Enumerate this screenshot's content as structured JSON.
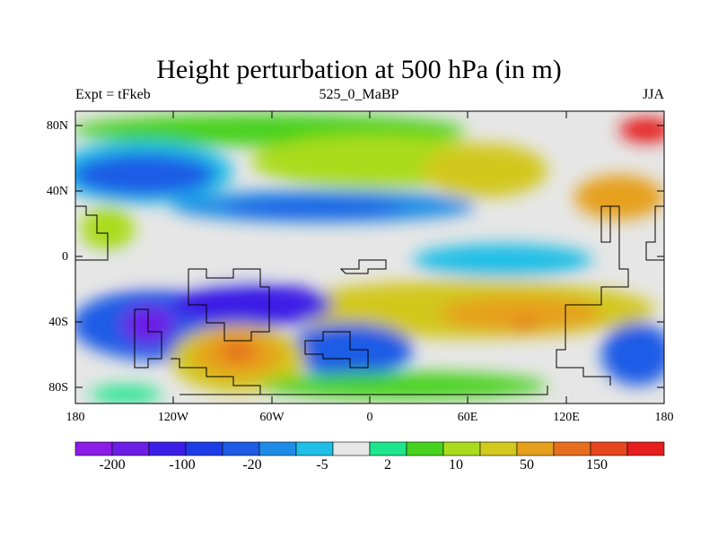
{
  "title": "Height perturbation at 500 hPa (in m)",
  "subtitle_left": "Expt = tFkeb",
  "subtitle_center": "525_0_MaBP",
  "subtitle_right": "JJA",
  "lat_ticks": [
    "80N",
    "40N",
    "0",
    "40S",
    "80S"
  ],
  "lon_ticks": [
    "180",
    "120W",
    "60W",
    "0",
    "60E",
    "120E",
    "180"
  ],
  "colorbar": {
    "colors": [
      "#8c1ce6",
      "#6d1ee6",
      "#3c1ee6",
      "#1e3ce6",
      "#1e5ce6",
      "#1e8ce6",
      "#1ebee6",
      "#e6e6e6",
      "#1ee68c",
      "#46d21e",
      "#aadc1e",
      "#d2c81e",
      "#e6a01e",
      "#e66e1e",
      "#e6461e",
      "#e61e1e"
    ],
    "labels": [
      "-200",
      "-100",
      "-20",
      "-5",
      "2",
      "10",
      "50",
      "150"
    ]
  },
  "chart_data": {
    "type": "heatmap",
    "title": "Height perturbation at 500 hPa (in m)",
    "subtitle": "525_0_MaBP",
    "season": "JJA",
    "experiment": "tFkeb",
    "levels": [
      -200,
      -150,
      -100,
      -50,
      -20,
      -10,
      -5,
      -2,
      2,
      5,
      10,
      20,
      50,
      100,
      150
    ],
    "xlim": [
      -180,
      180
    ],
    "ylim": [
      -90,
      90
    ],
    "features": [
      {
        "lon": -110,
        "lat": 52,
        "value": -30
      },
      {
        "lon": -5,
        "lat": 42,
        "value": -30
      },
      {
        "lon": 60,
        "lat": 62,
        "value": 10
      },
      {
        "lon": 120,
        "lat": 45,
        "value": 30
      },
      {
        "lon": -145,
        "lat": -45,
        "value": -150
      },
      {
        "lon": -70,
        "lat": -32,
        "value": -100
      },
      {
        "lon": -75,
        "lat": -58,
        "value": 120
      },
      {
        "lon": -25,
        "lat": -50,
        "value": -50
      },
      {
        "lon": 95,
        "lat": -42,
        "value": 120
      },
      {
        "lon": 15,
        "lat": -35,
        "value": 15
      },
      {
        "lon": 170,
        "lat": -60,
        "value": -50
      },
      {
        "lon": 175,
        "lat": 75,
        "value": 150
      }
    ]
  }
}
